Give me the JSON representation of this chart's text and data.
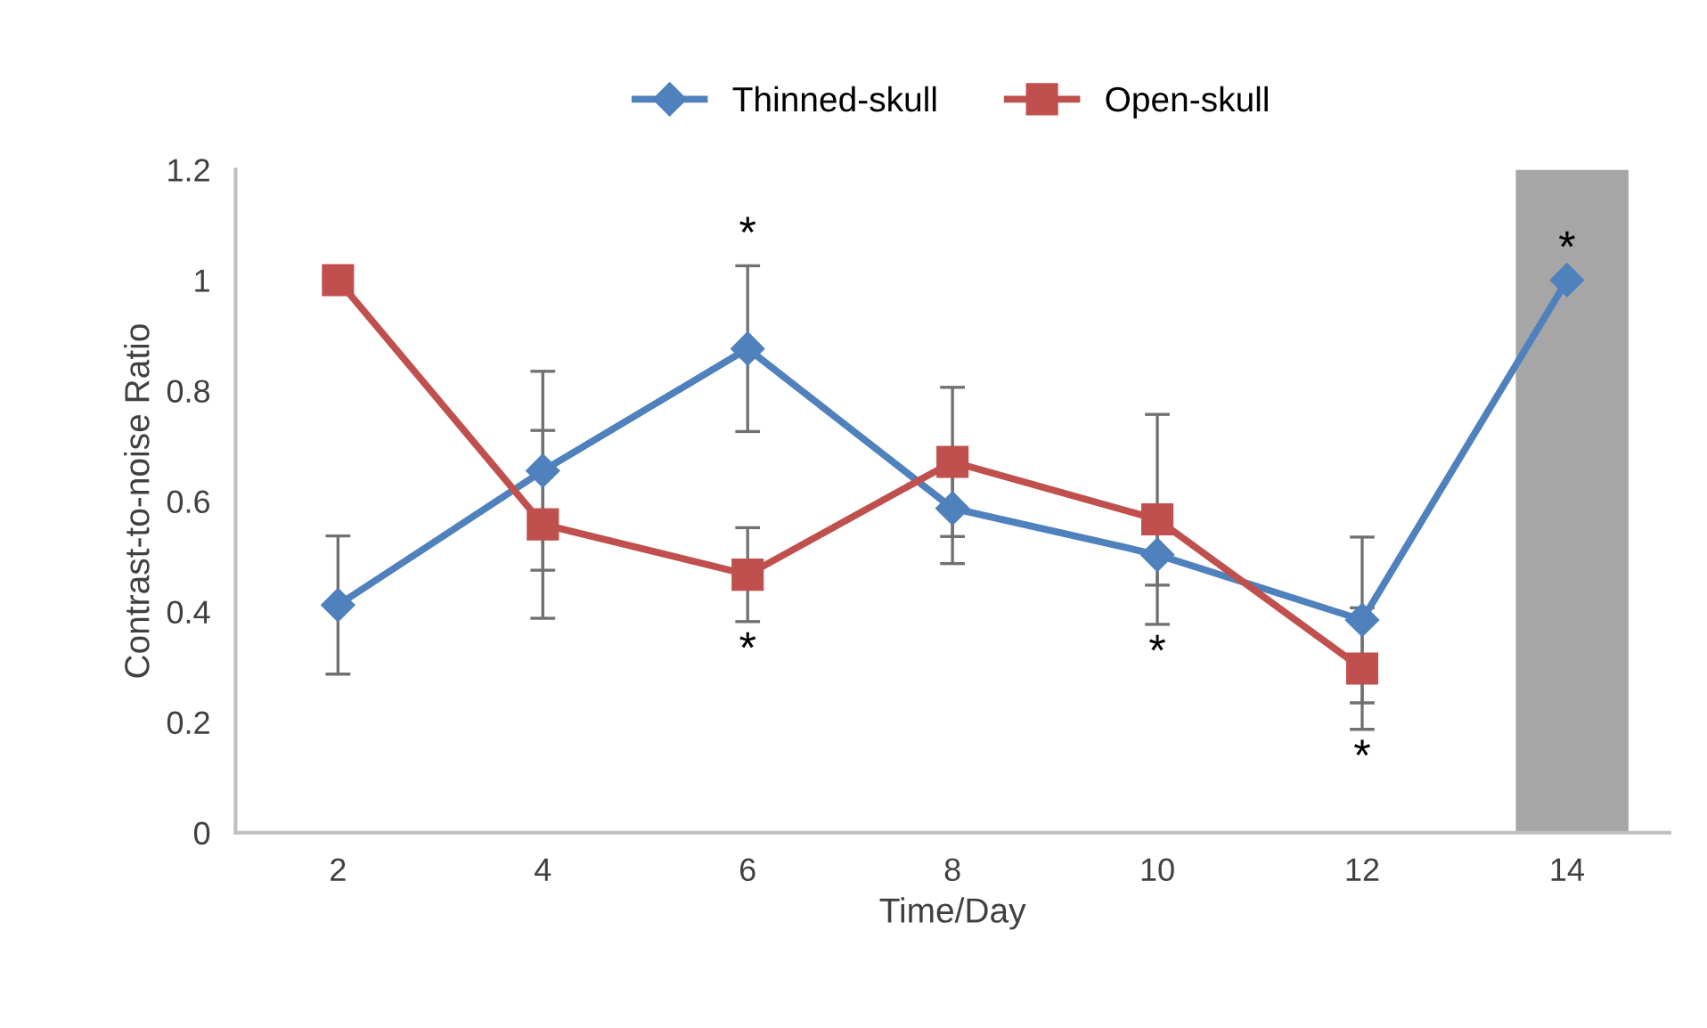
{
  "chart_data": {
    "type": "line",
    "xlabel": "Time/Day",
    "ylabel": "Contrast-to-noise Ratio",
    "x": [
      2,
      4,
      6,
      8,
      10,
      12,
      14
    ],
    "series": [
      {
        "name": "Thinned-skull",
        "color": "#4f81bd",
        "marker": "diamond",
        "values": [
          0.412,
          0.655,
          0.876,
          0.587,
          0.503,
          0.385,
          1.0
        ],
        "errors": [
          0.125,
          0.18,
          0.15,
          0.1,
          0.055,
          0.15,
          null
        ]
      },
      {
        "name": "Open-skull",
        "color": "#c0504d",
        "marker": "square",
        "values": [
          1.0,
          0.558,
          0.467,
          0.671,
          0.567,
          0.297,
          null
        ],
        "errors": [
          null,
          0.17,
          0.085,
          0.135,
          0.19,
          0.11,
          null
        ]
      }
    ],
    "xlim": [
      1,
      15
    ],
    "xticks": [
      2,
      4,
      6,
      8,
      10,
      12,
      14
    ],
    "ylim": [
      0,
      1.2
    ],
    "yticks": [
      0,
      0.2,
      0.4,
      0.6,
      0.8,
      1,
      1.2
    ],
    "bands": [
      {
        "axis": "x",
        "from": 13.5,
        "to": 14.6,
        "color": "#a6a6a6"
      }
    ],
    "annotations": [
      {
        "text": "*",
        "x": 6,
        "y": 1.026
      },
      {
        "text": "*",
        "x": 6,
        "y": 0.382
      },
      {
        "text": "*",
        "x": 10,
        "y": 0.377
      },
      {
        "text": "*",
        "x": 12,
        "y": 0.187
      },
      {
        "text": "*",
        "x": 14,
        "y": 1.0
      }
    ],
    "legend": "top",
    "grid": false,
    "line_style": "solid"
  }
}
